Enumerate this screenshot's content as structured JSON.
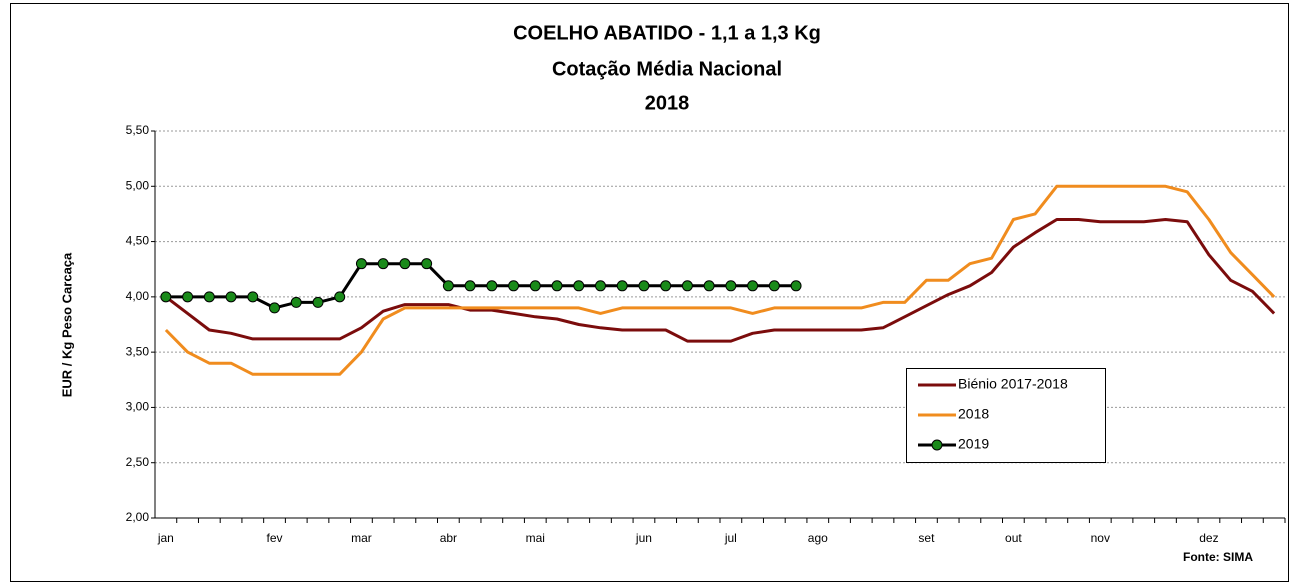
{
  "chart_data": {
    "type": "line",
    "title": "COELHO ABATIDO - 1,1 a 1,3 Kg",
    "subtitle": "Cotação Média Nacional",
    "year_label": "2018",
    "y_label": "EUR / Kg Peso Carcaça",
    "source": "Fonte: SIMA",
    "categories": [
      "jan",
      null,
      null,
      null,
      null,
      "fev",
      null,
      null,
      null,
      "mar",
      null,
      null,
      null,
      "abr",
      null,
      null,
      null,
      "mai",
      null,
      null,
      null,
      null,
      "jun",
      null,
      null,
      null,
      "jul",
      null,
      null,
      null,
      "ago",
      null,
      null,
      null,
      null,
      "set",
      null,
      null,
      null,
      "out",
      null,
      null,
      null,
      "nov",
      null,
      null,
      null,
      null,
      "dez",
      null,
      null,
      null
    ],
    "ylim": [
      2.0,
      5.5
    ],
    "yticks": [
      {
        "value": 2.0,
        "label": "2,00"
      },
      {
        "value": 2.5,
        "label": "2,50"
      },
      {
        "value": 3.0,
        "label": "3,00"
      },
      {
        "value": 3.5,
        "label": "3,50"
      },
      {
        "value": 4.0,
        "label": "4,00"
      },
      {
        "value": 4.5,
        "label": "4,50"
      },
      {
        "value": 5.0,
        "label": "5,00"
      },
      {
        "value": 5.5,
        "label": "5,50"
      }
    ],
    "grid": true,
    "legend": "right",
    "series": [
      {
        "name": "Biénio 2017-2018",
        "color": "#7b0c0c",
        "markers": false,
        "values": [
          4.0,
          3.85,
          3.7,
          3.67,
          3.62,
          3.62,
          3.62,
          3.62,
          3.62,
          3.72,
          3.87,
          3.93,
          3.93,
          3.93,
          3.88,
          3.88,
          3.85,
          3.82,
          3.8,
          3.75,
          3.72,
          3.7,
          3.7,
          3.7,
          3.6,
          3.6,
          3.6,
          3.67,
          3.7,
          3.7,
          3.7,
          3.7,
          3.7,
          3.72,
          3.82,
          3.92,
          4.02,
          4.1,
          4.22,
          4.45,
          4.58,
          4.7,
          4.7,
          4.68,
          4.68,
          4.68,
          4.7,
          4.68,
          4.38,
          4.15,
          4.05,
          3.85
        ]
      },
      {
        "name": "2018",
        "color": "#f08c1e",
        "markers": false,
        "values": [
          3.7,
          3.5,
          3.4,
          3.4,
          3.3,
          3.3,
          3.3,
          3.3,
          3.3,
          3.5,
          3.8,
          3.9,
          3.9,
          3.9,
          3.9,
          3.9,
          3.9,
          3.9,
          3.9,
          3.9,
          3.85,
          3.9,
          3.9,
          3.9,
          3.9,
          3.9,
          3.9,
          3.85,
          3.9,
          3.9,
          3.9,
          3.9,
          3.9,
          3.95,
          3.95,
          4.15,
          4.15,
          4.3,
          4.35,
          4.7,
          4.75,
          5.0,
          5.0,
          5.0,
          5.0,
          5.0,
          5.0,
          4.95,
          4.7,
          4.4,
          4.2,
          4.0
        ]
      },
      {
        "name": "2019",
        "color": "#000000",
        "markers": true,
        "marker_color": "#1a8a1a",
        "values": [
          4.0,
          4.0,
          4.0,
          4.0,
          4.0,
          3.9,
          3.95,
          3.95,
          4.0,
          4.3,
          4.3,
          4.3,
          4.3,
          4.1,
          4.1,
          4.1,
          4.1,
          4.1,
          4.1,
          4.1,
          4.1,
          4.1,
          4.1,
          4.1,
          4.1,
          4.1,
          4.1,
          4.1,
          4.1,
          4.1,
          null,
          null,
          null,
          null,
          null,
          null,
          null,
          null,
          null,
          null,
          null,
          null,
          null,
          null,
          null,
          null,
          null,
          null,
          null,
          null,
          null,
          null
        ]
      }
    ]
  }
}
